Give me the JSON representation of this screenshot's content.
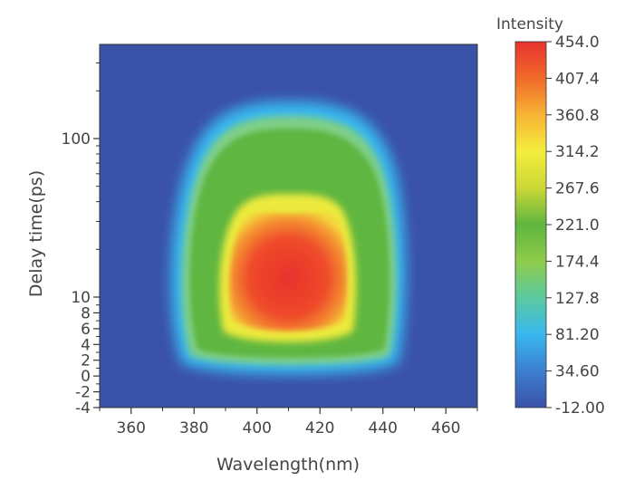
{
  "chart_data": {
    "type": "heatmap",
    "title": "",
    "xlabel": "Wavelength(nm)",
    "ylabel": "Delay time(ps)",
    "xlim": [
      350,
      470
    ],
    "x_ticks": [
      360,
      380,
      400,
      420,
      440,
      460
    ],
    "y_scale": "symmetric-log (linear near zero, log above ~10)",
    "y_ticks": [
      -4,
      -2,
      0,
      2,
      4,
      6,
      8,
      10,
      100
    ],
    "y_tick_labels": [
      "-4",
      "-2",
      "0",
      "2",
      "4",
      "6",
      "8",
      "10",
      "100"
    ],
    "ylim": [
      -4,
      400
    ],
    "colorbar": {
      "label": "Intensity",
      "range": [
        -12.0,
        454.0
      ],
      "ticks": [
        454.0,
        407.4,
        360.8,
        314.2,
        267.6,
        221.0,
        174.4,
        127.8,
        81.2,
        34.6,
        -12.0
      ],
      "tick_labels": [
        "454.0",
        "407.4",
        "360.8",
        "314.2",
        "267.6",
        "221.0",
        "174.4",
        "127.8",
        "81.20",
        "34.60",
        "-12.00"
      ],
      "colormap": [
        "#3a52a8",
        "#3c7fd0",
        "#38b8ef",
        "#5cc9a0",
        "#8fcc4a",
        "#5fb63f",
        "#cbd736",
        "#f4ee3c",
        "#f7b334",
        "#f06a2a",
        "#e8322d"
      ]
    },
    "peak": {
      "wavelength": 408,
      "delay": 9,
      "intensity": 454.0
    },
    "background_intensity": -12.0,
    "features": [
      {
        "description_level": "high-intensity core",
        "wavelength_range": [
          393,
          424
        ],
        "delay_range": [
          4.5,
          30
        ]
      },
      {
        "description_level": "mid-intensity region",
        "wavelength_range": [
          376,
          438
        ],
        "delay_range": [
          2,
          150
        ]
      }
    ]
  }
}
